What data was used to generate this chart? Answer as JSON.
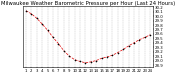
{
  "title": "Milwaukee Weather Barometric Pressure per Hour (Last 24 Hours)",
  "x_values": [
    0,
    1,
    2,
    3,
    4,
    5,
    6,
    7,
    8,
    9,
    10,
    11,
    12,
    13,
    14,
    15,
    16,
    17,
    18,
    19,
    20,
    21,
    22,
    23
  ],
  "y_values": [
    30.12,
    30.05,
    29.95,
    29.82,
    29.68,
    29.52,
    29.38,
    29.22,
    29.1,
    29.02,
    28.98,
    28.95,
    28.97,
    29.0,
    29.05,
    29.08,
    29.12,
    29.18,
    29.25,
    29.33,
    29.4,
    29.47,
    29.52,
    29.58
  ],
  "line_color": "#dd0000",
  "marker_color": "#000000",
  "bg_color": "#ffffff",
  "grid_color": "#888888",
  "title_fontsize": 3.8,
  "tick_fontsize": 2.8,
  "ylim": [
    28.85,
    30.22
  ],
  "y_ticks": [
    28.9,
    29.0,
    29.1,
    29.2,
    29.3,
    29.4,
    29.5,
    29.6,
    29.7,
    29.8,
    29.9,
    30.0,
    30.1,
    30.2
  ],
  "x_tick_labels": [
    "1",
    "2",
    "3",
    "4",
    "5",
    "6",
    "7",
    "8",
    "9",
    "10",
    "11",
    "12",
    "13",
    "14",
    "15",
    "16",
    "17",
    "18",
    "19",
    "20",
    "21",
    "22",
    "23",
    "24"
  ]
}
